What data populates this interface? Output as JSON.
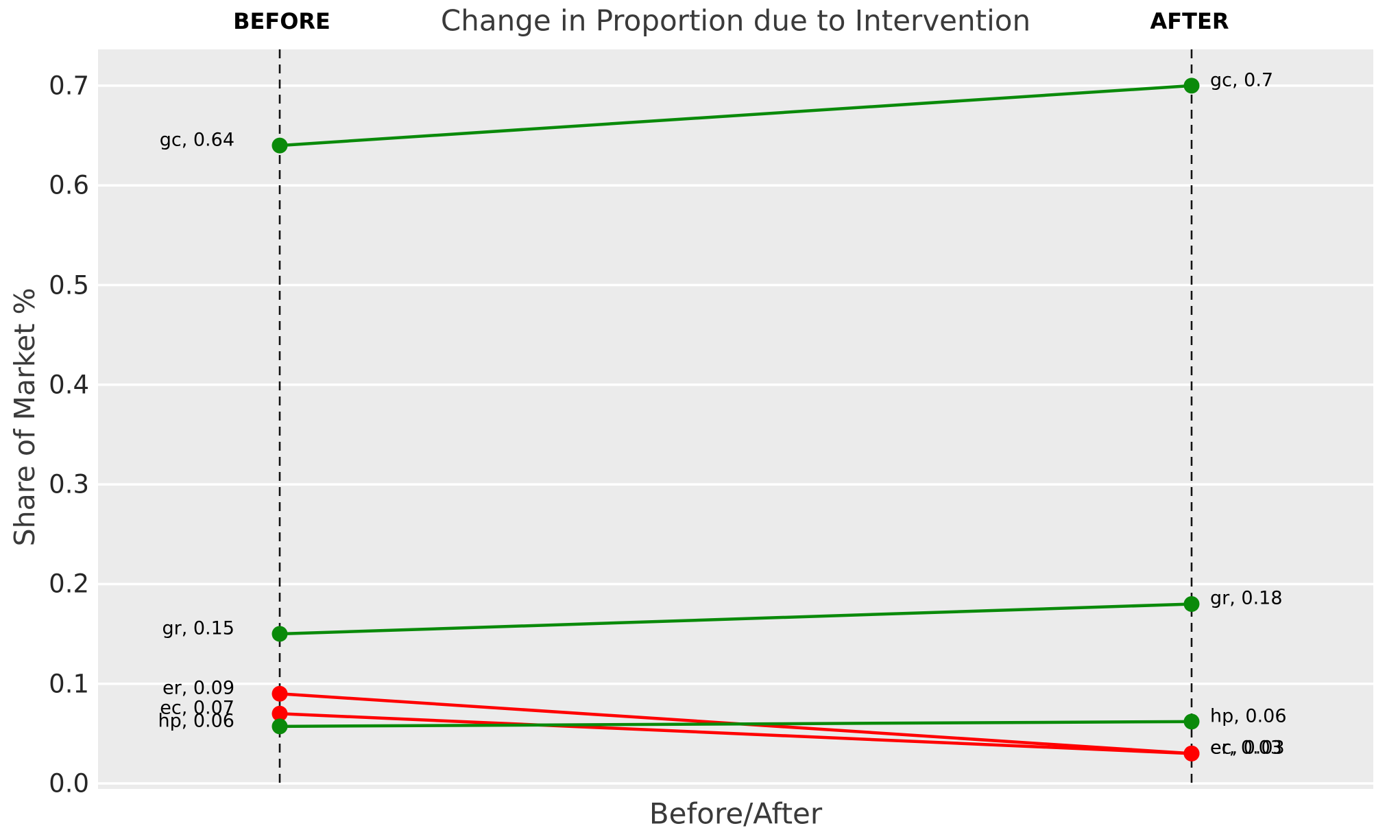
{
  "title": "Change in Proportion due to Intervention",
  "column_headers": {
    "before": "BEFORE",
    "after": "AFTER"
  },
  "axes": {
    "xlabel": "Before/After",
    "ylabel": "Share of Market %",
    "ytick_labels": [
      "0.0",
      "0.1",
      "0.2",
      "0.3",
      "0.4",
      "0.5",
      "0.6",
      "0.7"
    ]
  },
  "colors": {
    "increase": "#0a8a0a",
    "decrease": "#ff0000",
    "plot_background": "#ebebeb",
    "gridline": "#ffffff",
    "column_line": "#111111",
    "text_dark": "#262626",
    "text_muted": "#3a3a3a"
  },
  "chart_data": {
    "type": "line",
    "subtype": "slope-chart",
    "title": "Change in Proportion due to Intervention",
    "xlabel": "Before/After",
    "ylabel": "Share of Market %",
    "categories": [
      "BEFORE",
      "AFTER"
    ],
    "ylim": [
      0.0,
      0.74
    ],
    "yticks": [
      0.0,
      0.1,
      0.2,
      0.3,
      0.4,
      0.5,
      0.6,
      0.7
    ],
    "grid": true,
    "legend": "none",
    "series": [
      {
        "name": "gc",
        "before": 0.64,
        "after": 0.7,
        "direction": "increase",
        "label_before": "gc, 0.64",
        "label_after": "gc, 0.7"
      },
      {
        "name": "gr",
        "before": 0.15,
        "after": 0.18,
        "direction": "increase",
        "label_before": "gr, 0.15",
        "label_after": "gr, 0.18"
      },
      {
        "name": "er",
        "before": 0.09,
        "after": 0.03,
        "direction": "decrease",
        "label_before": "er, 0.09",
        "label_after": "er, 0.03"
      },
      {
        "name": "ec",
        "before": 0.07,
        "after": 0.03,
        "direction": "decrease",
        "label_before": "ec, 0.07",
        "label_after": "ec, 0.03"
      },
      {
        "name": "hp",
        "before": 0.06,
        "after": 0.06,
        "direction": "increase",
        "label_before": "hp, 0.06",
        "label_after": "hp, 0.06"
      }
    ]
  }
}
